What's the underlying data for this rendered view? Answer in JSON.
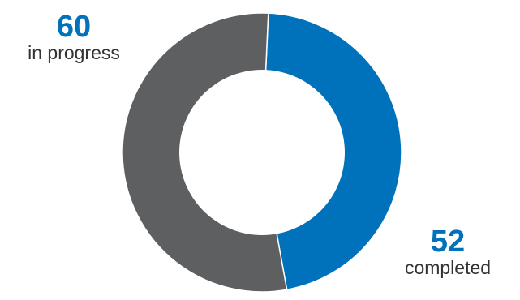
{
  "chart_data": {
    "type": "pie",
    "hole": true,
    "slices": [
      {
        "key": "completed",
        "label": "completed",
        "value": 52,
        "color": "#0072bc"
      },
      {
        "key": "in_progress",
        "label": "in progress",
        "value": 60,
        "color": "#5e5f61"
      }
    ]
  },
  "labels": {
    "in_progress": {
      "value": "60",
      "text": "in progress"
    },
    "completed": {
      "value": "52",
      "text": "completed"
    }
  }
}
